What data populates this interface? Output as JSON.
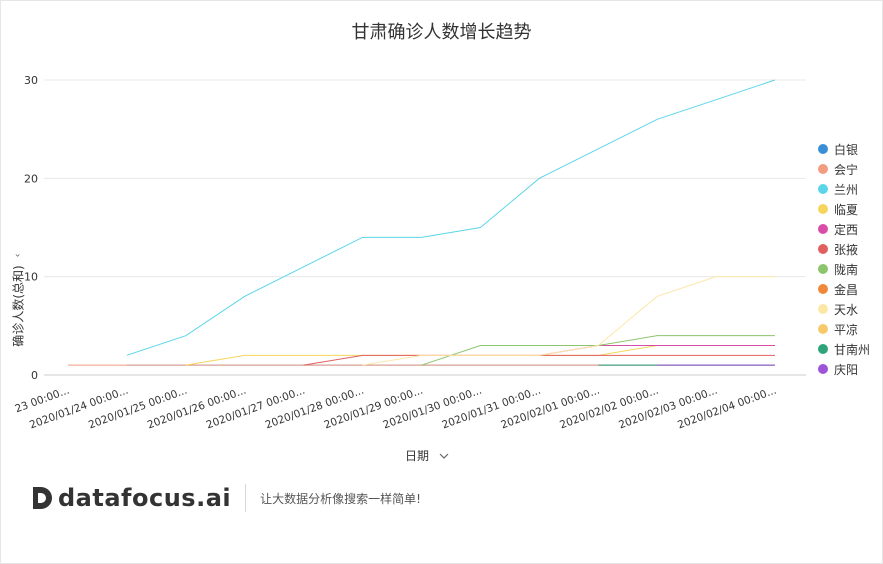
{
  "title": "甘肃确诊人数增长趋势",
  "axis": {
    "x_label": "日期",
    "y_label": "确诊人数(总和)",
    "chevron": "chevron-down-icon"
  },
  "brand": {
    "name": "datafocus.ai",
    "slogan": "让大数据分析像搜索一样简单!"
  },
  "chart_data": {
    "type": "line",
    "title": "甘肃确诊人数增长趋势",
    "xlabel": "日期",
    "ylabel": "确诊人数(总和)",
    "ylim": [
      0,
      30
    ],
    "yticks": [
      0,
      10,
      20,
      30
    ],
    "grid": true,
    "legend_position": "right",
    "x": [
      "23 00:00...",
      "2020/01/24 00:00...",
      "2020/01/25 00:00...",
      "2020/01/26 00:00...",
      "2020/01/27 00:00...",
      "2020/01/28 00:00...",
      "2020/01/29 00:00...",
      "2020/01/30 00:00...",
      "2020/01/31 00:00...",
      "2020/02/01 00:00...",
      "2020/02/02 00:00...",
      "2020/02/03 00:00...",
      "2020/02/04 00:00..."
    ],
    "series": [
      {
        "name": "白银",
        "color": "#3a8ed6",
        "values": [
          null,
          1,
          1,
          1,
          1,
          1,
          1,
          1,
          1,
          1,
          1,
          1,
          1
        ]
      },
      {
        "name": "会宁",
        "color": "#f29c80",
        "values": [
          1,
          1,
          1,
          1,
          1,
          1,
          1,
          1,
          1,
          1,
          1,
          1,
          1
        ]
      },
      {
        "name": "兰州",
        "color": "#5bd6e8",
        "values": [
          null,
          2,
          4,
          8,
          11,
          14,
          14,
          15,
          20,
          23,
          26,
          28,
          30
        ]
      },
      {
        "name": "临夏",
        "color": "#f6d55c",
        "values": [
          null,
          null,
          1,
          2,
          2,
          2,
          2,
          2,
          2,
          2,
          3,
          3,
          3
        ]
      },
      {
        "name": "定西",
        "color": "#d94da8",
        "values": [
          null,
          null,
          null,
          null,
          null,
          null,
          null,
          null,
          2,
          3,
          3,
          3,
          3
        ]
      },
      {
        "name": "张掖",
        "color": "#e0605f",
        "values": [
          null,
          null,
          null,
          null,
          1,
          2,
          2,
          2,
          2,
          2,
          2,
          2,
          2
        ]
      },
      {
        "name": "陇南",
        "color": "#8dc56c",
        "values": [
          null,
          null,
          null,
          null,
          null,
          null,
          1,
          3,
          3,
          3,
          4,
          4,
          4
        ]
      },
      {
        "name": "金昌",
        "color": "#f0883a",
        "values": [
          null,
          null,
          null,
          null,
          null,
          null,
          null,
          null,
          null,
          null,
          null,
          null,
          null
        ]
      },
      {
        "name": "天水",
        "color": "#fde7a7",
        "values": [
          null,
          null,
          null,
          null,
          null,
          1,
          2,
          2,
          2,
          3,
          8,
          10,
          10
        ]
      },
      {
        "name": "平凉",
        "color": "#f7c96b",
        "values": [
          null,
          null,
          null,
          null,
          null,
          null,
          null,
          null,
          null,
          null,
          null,
          null,
          null
        ]
      },
      {
        "name": "甘南州",
        "color": "#2fa37a",
        "values": [
          null,
          null,
          null,
          null,
          null,
          null,
          null,
          null,
          null,
          1,
          1,
          1,
          1
        ]
      },
      {
        "name": "庆阳",
        "color": "#9c55d8",
        "values": [
          null,
          null,
          null,
          null,
          null,
          null,
          null,
          null,
          null,
          null,
          1,
          1,
          1
        ]
      }
    ]
  }
}
